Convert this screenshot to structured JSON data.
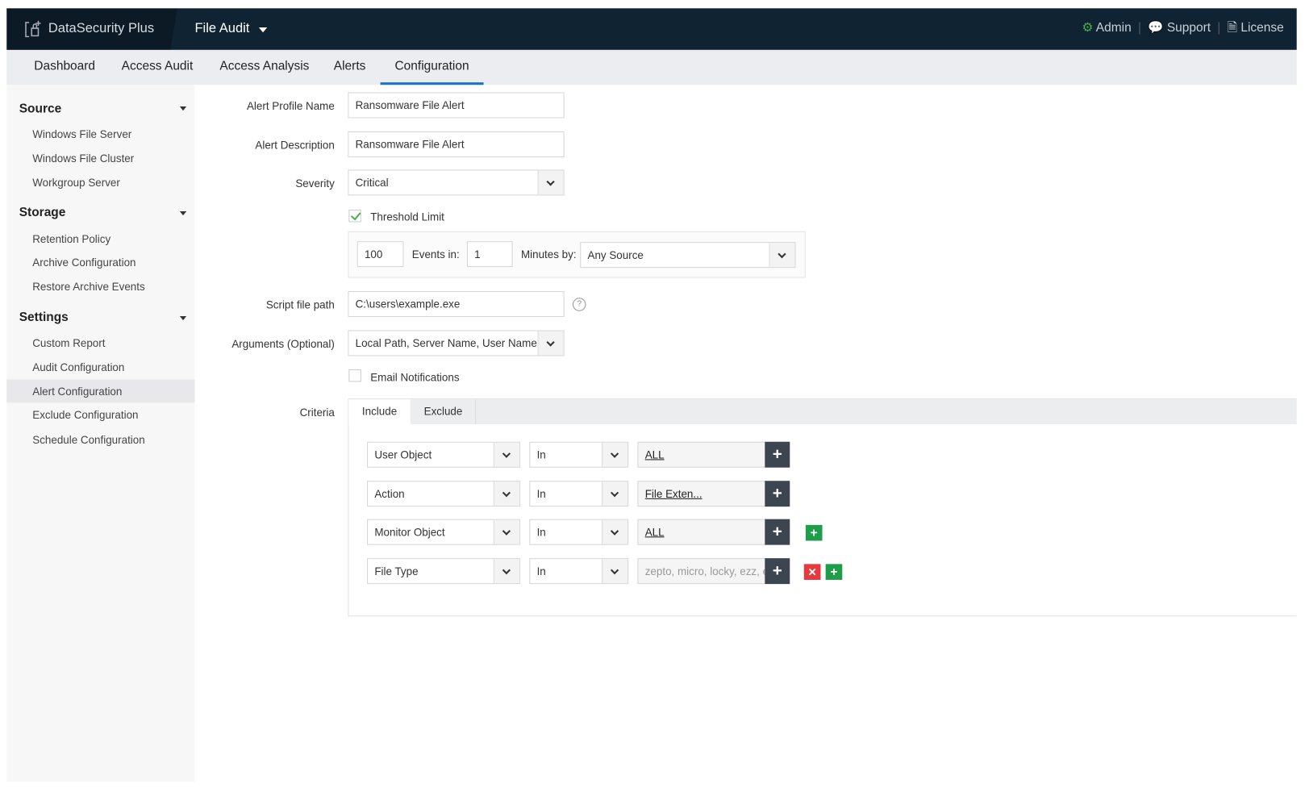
{
  "app": {
    "brand": "DataSecurity Plus",
    "module": "File Audit",
    "header_links": [
      {
        "label": "Admin",
        "icon": "admin-gear-icon"
      },
      {
        "label": "Support",
        "icon": "support-chat-icon"
      },
      {
        "label": "License",
        "icon": "license-icon"
      }
    ]
  },
  "nav": {
    "tabs": [
      "Dashboard",
      "Access Audit",
      "Access Analysis",
      "Alerts",
      "Configuration"
    ],
    "active": "Configuration"
  },
  "sidebar": {
    "sections": [
      {
        "title": "Source",
        "items": [
          "Windows File Server",
          "Windows File Cluster",
          "Workgroup Server"
        ]
      },
      {
        "title": "Storage",
        "items": [
          "Retention Policy",
          "Archive Configuration",
          "Restore Archive Events"
        ]
      },
      {
        "title": "Settings",
        "items": [
          "Custom Report",
          "Audit Configuration",
          "Alert Configuration",
          "Exclude Configuration",
          "Schedule Configuration"
        ]
      }
    ],
    "selected": "Alert Configuration"
  },
  "form": {
    "profile_name_label": "Alert Profile Name",
    "profile_name": "Ransomware File Alert",
    "description_label": "Alert Description",
    "description": "Ransomware File Alert",
    "severity_label": "Severity",
    "severity": "Critical",
    "threshold_label": "Threshold Limit",
    "threshold_checked": true,
    "threshold_count": "100",
    "events_in_label": "Events in:",
    "minutes": "1",
    "minutes_by_label": "Minutes by:",
    "source": "Any Source",
    "script_label": "Script file path",
    "script_path": "C:\\users\\example.exe",
    "args_label": "Arguments (Optional)",
    "args": "Local Path, Server Name, User Name",
    "email_label": "Email Notifications",
    "email_checked": false,
    "criteria_label": "Criteria",
    "criteria_tabs": [
      "Include",
      "Exclude"
    ],
    "criteria_active": "Include",
    "criteria_rows": [
      {
        "field": "User Object",
        "op": "In",
        "value": "ALL"
      },
      {
        "field": "Action",
        "op": "In",
        "value": "File Exten..."
      },
      {
        "field": "Monitor Object",
        "op": "In",
        "value": "ALL"
      },
      {
        "field": "File Type",
        "op": "In",
        "value": "zepto, micro, locky, ezz, ecc"
      }
    ]
  },
  "colors": {
    "header": "#0f2332",
    "accent": "#1a73c9",
    "add": "#1e9e4a",
    "remove": "#e8383d",
    "dark_button": "#3c4650"
  }
}
